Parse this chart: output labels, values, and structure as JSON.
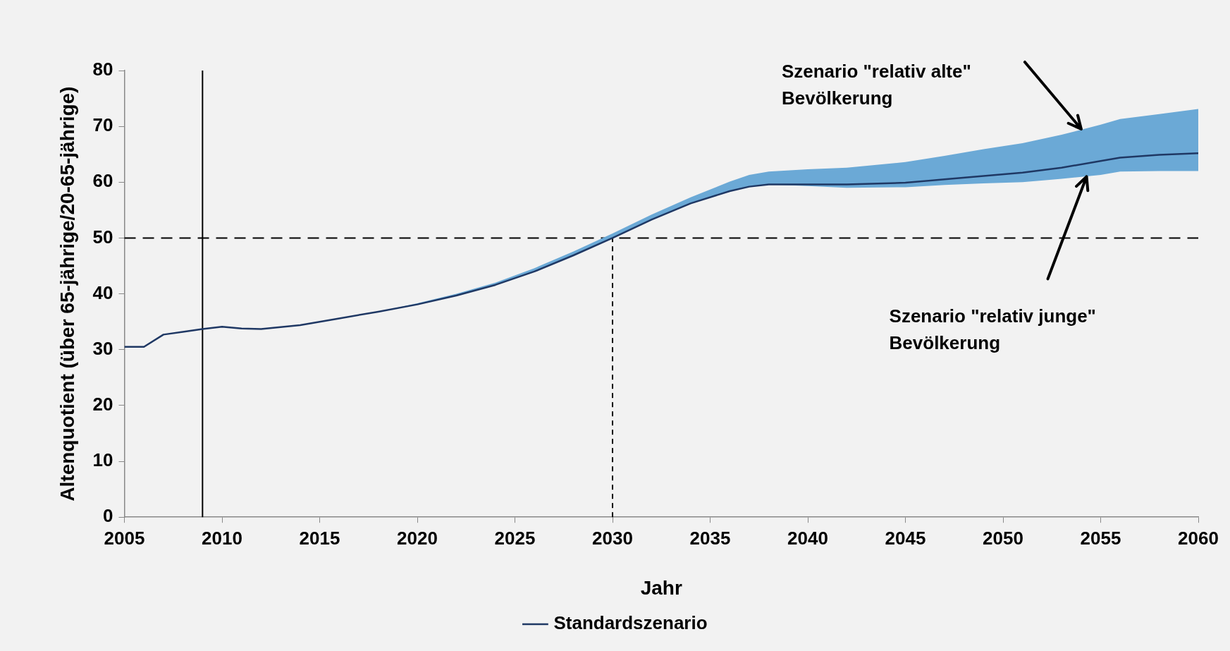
{
  "chart_data": {
    "type": "line",
    "xlabel": "Jahr",
    "ylabel": "Altenquotient (über 65-jährige/20-65-jährige)",
    "xlim": [
      2005,
      2060
    ],
    "xticks": [
      2005,
      2010,
      2015,
      2020,
      2025,
      2030,
      2035,
      2040,
      2045,
      2050,
      2055,
      2060
    ],
    "ylim": [
      0,
      80
    ],
    "yticks": [
      0,
      10,
      20,
      30,
      40,
      50,
      60,
      70,
      80
    ],
    "grid": false,
    "legend": "bottom",
    "marker": "none",
    "x": [
      2005,
      2006,
      2007,
      2008,
      2009,
      2010,
      2011,
      2012,
      2014,
      2016,
      2018,
      2020,
      2022,
      2024,
      2026,
      2028,
      2030,
      2032,
      2034,
      2036,
      2037,
      2038,
      2040,
      2042,
      2045,
      2047,
      2049,
      2051,
      2053,
      2055,
      2056,
      2058,
      2060
    ],
    "series": [
      {
        "name": "Standardszenario",
        "color": "#1f3864",
        "line_style": "solid",
        "values": [
          30.5,
          30.5,
          32.7,
          33.2,
          33.7,
          34.1,
          33.8,
          33.7,
          34.4,
          35.6,
          36.8,
          38.1,
          39.7,
          41.6,
          44.0,
          46.9,
          50.0,
          53.3,
          56.2,
          58.4,
          59.2,
          59.6,
          59.6,
          59.6,
          59.9,
          60.5,
          61.1,
          61.7,
          62.6,
          63.8,
          64.4,
          64.9,
          65.2
        ],
        "upper": [
          30.5,
          30.5,
          32.7,
          33.2,
          33.7,
          34.1,
          33.8,
          33.7,
          34.4,
          35.6,
          36.8,
          38.3,
          40.0,
          42.0,
          44.6,
          47.6,
          50.8,
          54.2,
          57.3,
          60.1,
          61.3,
          61.9,
          62.3,
          62.6,
          63.6,
          64.7,
          65.9,
          67.0,
          68.5,
          70.3,
          71.3,
          72.2,
          73.1
        ],
        "lower": [
          30.5,
          30.5,
          32.7,
          33.2,
          33.7,
          34.1,
          33.8,
          33.7,
          34.4,
          35.6,
          36.8,
          38.1,
          39.7,
          41.6,
          44.0,
          46.9,
          50.0,
          53.3,
          56.2,
          58.4,
          59.2,
          59.6,
          59.3,
          59.0,
          59.1,
          59.5,
          59.8,
          60.0,
          60.6,
          61.3,
          61.9,
          62.0,
          62.0
        ]
      }
    ],
    "ref_lines": [
      {
        "axis": "x",
        "value": 2009,
        "line_style": "solid",
        "color": "#000000"
      },
      {
        "axis": "y",
        "value": 50,
        "line_style": "dashed",
        "color": "#000000"
      },
      {
        "axis": "x",
        "value": 2030,
        "line_style": "dotted",
        "color": "#000000"
      }
    ],
    "annotations": [
      "Szenario \"relativ alte\" Bevölkerung",
      "Szenario \"relativ junge\" Bevölkerung"
    ]
  }
}
